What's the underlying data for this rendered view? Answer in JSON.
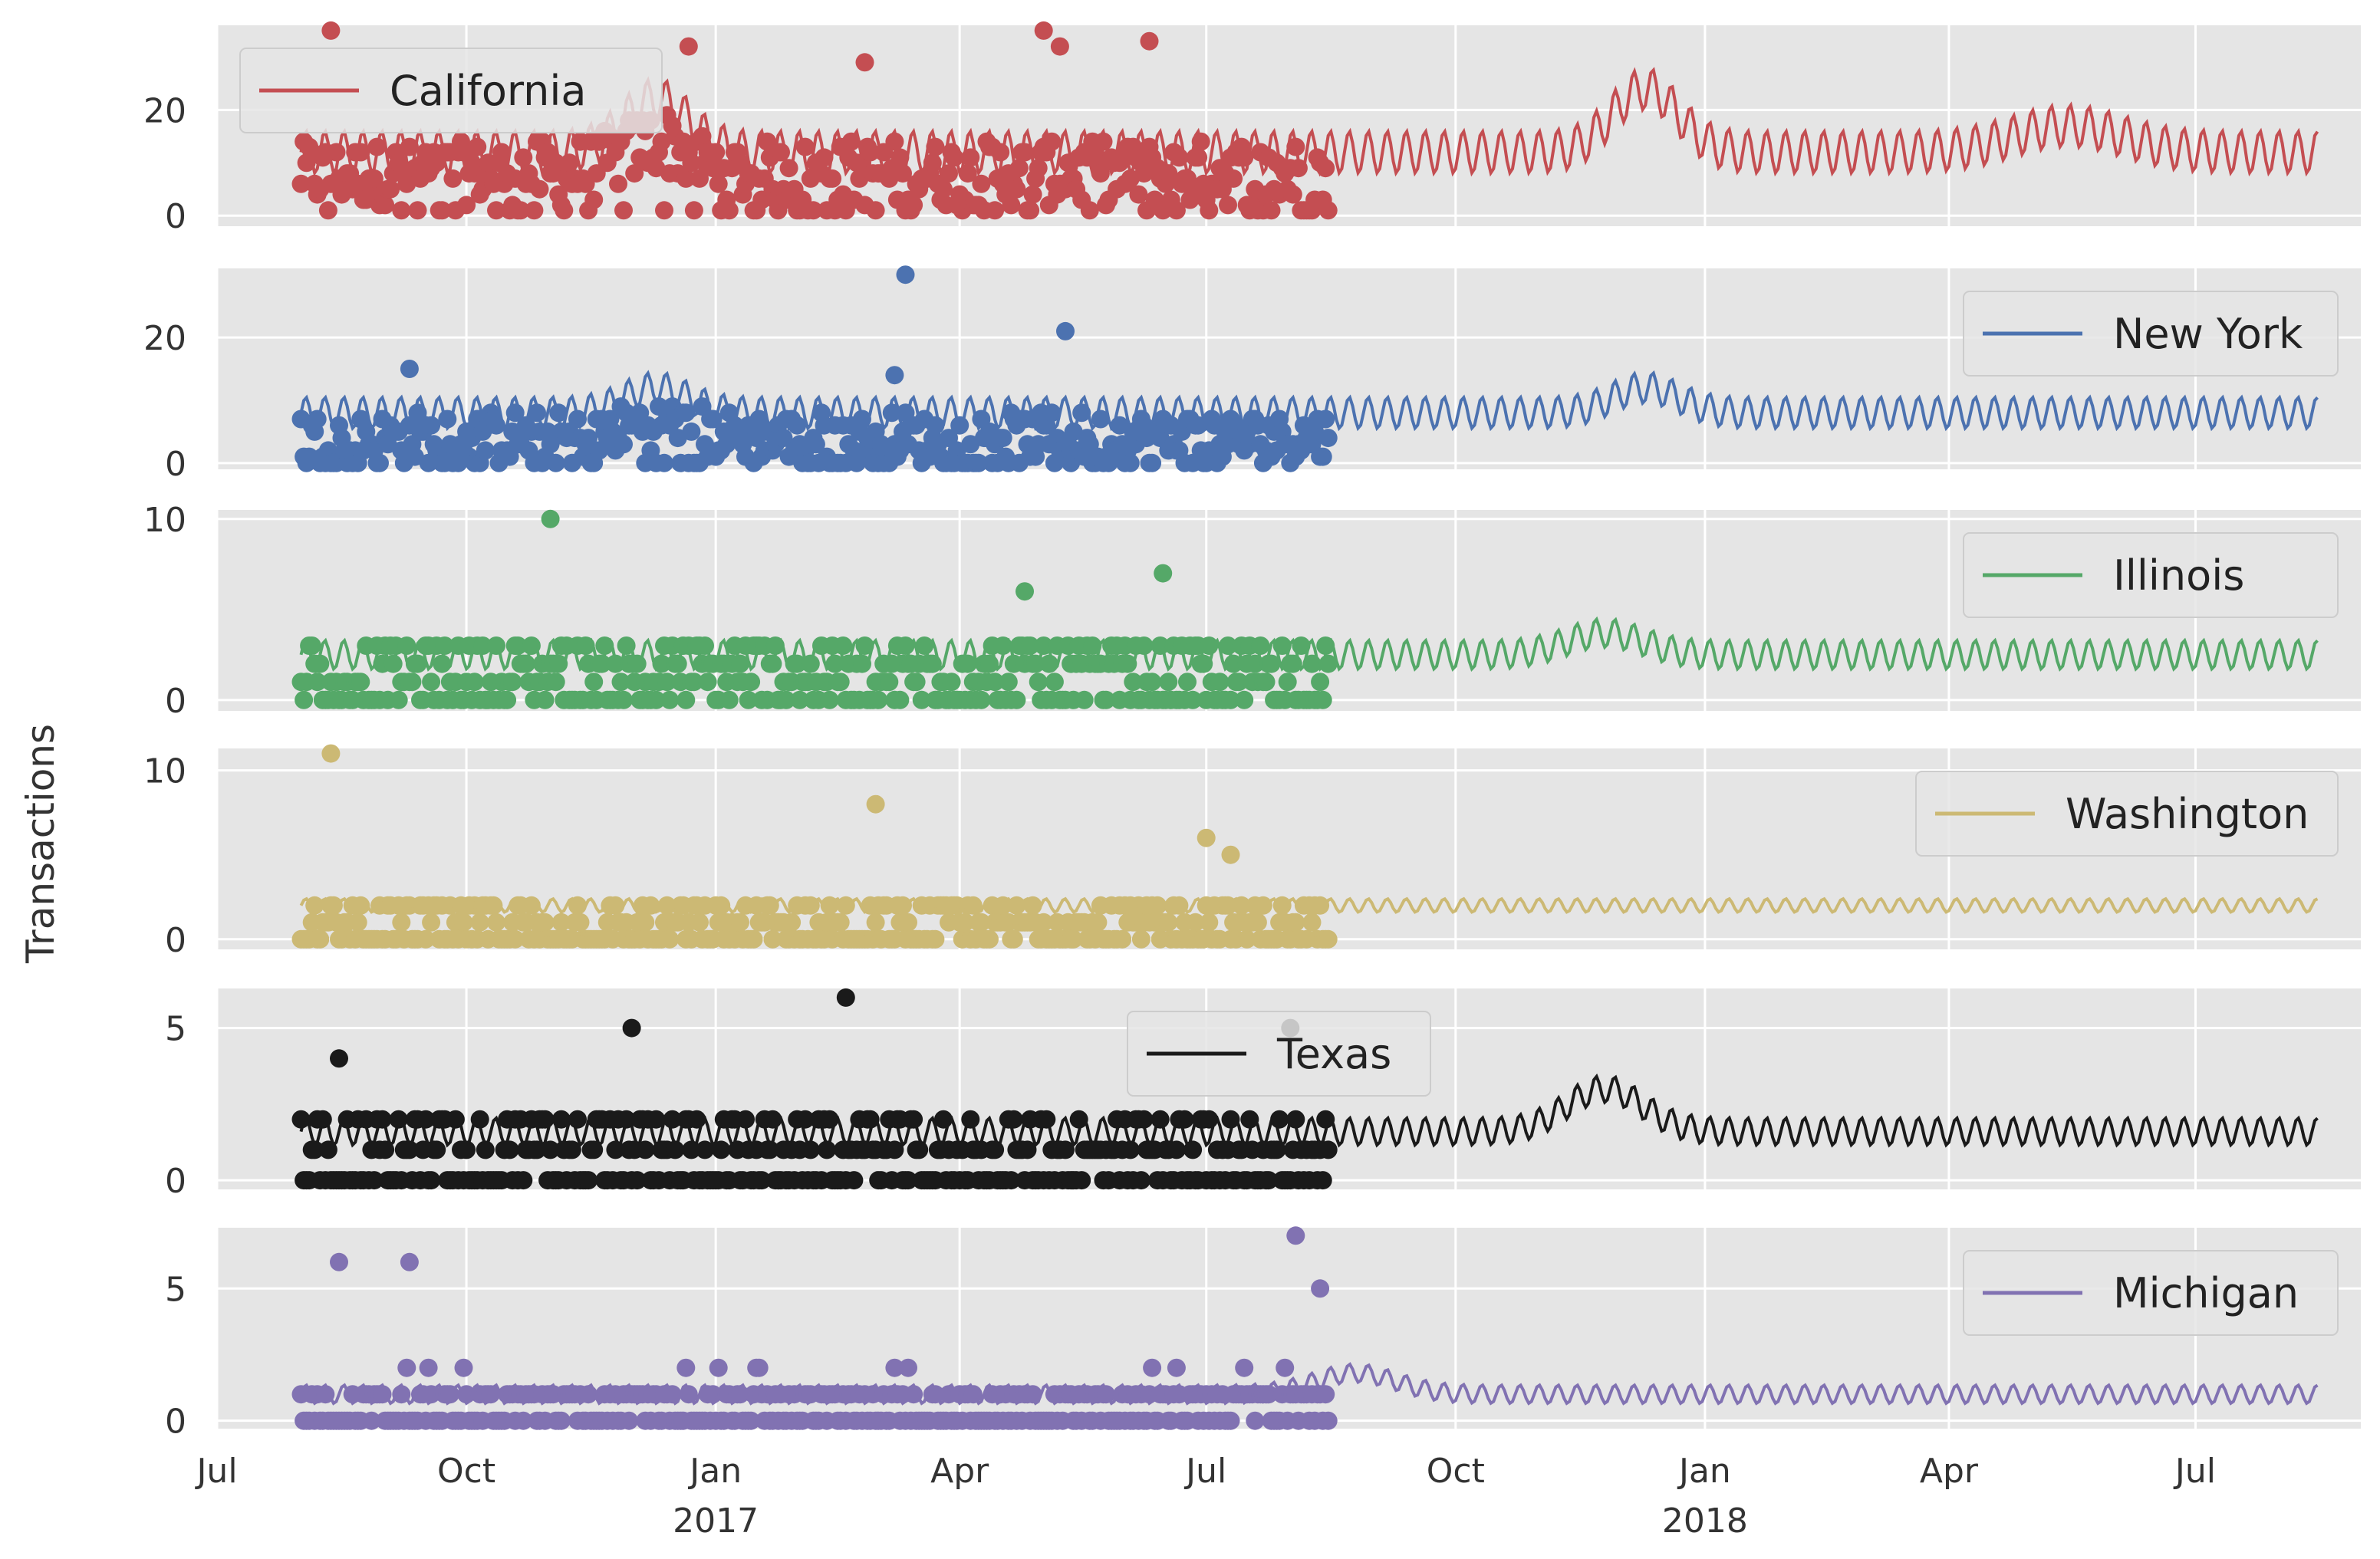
{
  "chart_data": {
    "type": "line",
    "ylabel": "Transactions",
    "xlabel": "",
    "xlim": [
      "2016-07-01",
      "2018-08-31"
    ],
    "grid": true,
    "background_color": "#e5e5e5",
    "marker_style": "scatter points = observed daily counts; line = fitted / forecast",
    "x_ticks": [
      {
        "date": "2016-07-01",
        "label": "Jul",
        "year": ""
      },
      {
        "date": "2016-10-01",
        "label": "Oct",
        "year": ""
      },
      {
        "date": "2017-01-01",
        "label": "Jan",
        "year": "2017"
      },
      {
        "date": "2017-04-01",
        "label": "Apr",
        "year": ""
      },
      {
        "date": "2017-07-01",
        "label": "Jul",
        "year": ""
      },
      {
        "date": "2017-10-01",
        "label": "Oct",
        "year": ""
      },
      {
        "date": "2018-01-01",
        "label": "Jan",
        "year": "2018"
      },
      {
        "date": "2018-04-01",
        "label": "Apr",
        "year": ""
      },
      {
        "date": "2018-07-01",
        "label": "Jul",
        "year": ""
      }
    ],
    "panels": [
      {
        "name": "California",
        "color": "#c44e52",
        "legend_position": "upper-left",
        "ylim": [
          -2,
          36
        ],
        "yticks": [
          0,
          20
        ],
        "observed_range": [
          "2016-08-01",
          "2017-08-15"
        ],
        "forecast_range": [
          "2016-08-01",
          "2018-08-15"
        ],
        "observed_base": 8,
        "observed_spread": 6,
        "forecast_level": 12,
        "weekly_amplitude": 4,
        "peaks": [
          {
            "date": "2016-12-10",
            "height": 10,
            "width_days": 12
          },
          {
            "date": "2017-12-10",
            "height": 12,
            "width_days": 12
          },
          {
            "date": "2018-05-15",
            "height": 5,
            "width_days": 20
          }
        ],
        "outliers": [
          {
            "date": "2016-08-12",
            "value": 35
          },
          {
            "date": "2016-12-22",
            "value": 32
          },
          {
            "date": "2017-05-02",
            "value": 35
          },
          {
            "date": "2017-05-08",
            "value": 32
          },
          {
            "date": "2017-06-10",
            "value": 33
          },
          {
            "date": "2017-02-25",
            "value": 29
          }
        ]
      },
      {
        "name": "New York",
        "color": "#4c72b0",
        "legend_position": "upper-right",
        "ylim": [
          -1,
          31
        ],
        "yticks": [
          0,
          20
        ],
        "observed_range": [
          "2016-08-01",
          "2017-08-15"
        ],
        "forecast_range": [
          "2016-08-01",
          "2018-08-15"
        ],
        "observed_base": 4,
        "observed_spread": 4,
        "forecast_level": 8,
        "weekly_amplitude": 2.5,
        "peaks": [
          {
            "date": "2016-12-10",
            "height": 4,
            "width_days": 12
          },
          {
            "date": "2017-12-10",
            "height": 4,
            "width_days": 12
          }
        ],
        "outliers": [
          {
            "date": "2017-03-12",
            "value": 30
          },
          {
            "date": "2017-05-10",
            "value": 21
          },
          {
            "date": "2016-09-10",
            "value": 15
          },
          {
            "date": "2017-03-08",
            "value": 14
          }
        ]
      },
      {
        "name": "Illinois",
        "color": "#55a868",
        "legend_position": "upper-right",
        "ylim": [
          -0.6,
          10.5
        ],
        "yticks": [
          0,
          10
        ],
        "observed_range": [
          "2016-08-01",
          "2017-08-15"
        ],
        "forecast_range": [
          "2016-08-01",
          "2018-08-15"
        ],
        "observed_base": 1.5,
        "observed_spread": 1.8,
        "forecast_level": 2.5,
        "weekly_amplitude": 0.8,
        "peaks": [
          {
            "date": "2017-11-25",
            "height": 1.2,
            "width_days": 14
          }
        ],
        "outliers": [
          {
            "date": "2016-11-01",
            "value": 10
          },
          {
            "date": "2017-06-15",
            "value": 7
          },
          {
            "date": "2017-04-25",
            "value": 6
          }
        ]
      },
      {
        "name": "Washington",
        "color": "#ccb974",
        "legend_position": "upper-right",
        "ylim": [
          -0.6,
          11.3
        ],
        "yticks": [
          0,
          10
        ],
        "observed_range": [
          "2016-08-01",
          "2017-08-15"
        ],
        "forecast_range": [
          "2016-08-01",
          "2018-08-15"
        ],
        "observed_base": 0.8,
        "observed_spread": 1.4,
        "forecast_level": 2.0,
        "weekly_amplitude": 0.4,
        "peaks": [],
        "outliers": [
          {
            "date": "2016-08-12",
            "value": 11
          },
          {
            "date": "2017-03-01",
            "value": 8
          },
          {
            "date": "2017-07-01",
            "value": 6
          },
          {
            "date": "2017-07-10",
            "value": 5
          }
        ]
      },
      {
        "name": "Texas",
        "color": "#1a1a1a",
        "legend_position": "upper-center",
        "ylim": [
          -0.3,
          6.3
        ],
        "yticks": [
          0,
          5
        ],
        "observed_range": [
          "2016-08-01",
          "2017-08-15"
        ],
        "forecast_range": [
          "2016-08-01",
          "2018-08-15"
        ],
        "observed_base": 0.8,
        "observed_spread": 1.2,
        "forecast_level": 1.6,
        "weekly_amplitude": 0.45,
        "peaks": [
          {
            "date": "2017-11-25",
            "height": 1.4,
            "width_days": 14
          }
        ],
        "outliers": [
          {
            "date": "2017-02-18",
            "value": 6
          },
          {
            "date": "2016-12-01",
            "value": 5
          },
          {
            "date": "2017-08-01",
            "value": 5
          },
          {
            "date": "2016-08-15",
            "value": 4
          }
        ]
      },
      {
        "name": "Michigan",
        "color": "#8172b2",
        "legend_position": "upper-right",
        "ylim": [
          -0.3,
          7.3
        ],
        "yticks": [
          0,
          5
        ],
        "observed_range": [
          "2016-08-01",
          "2017-08-15"
        ],
        "forecast_range": [
          "2016-08-01",
          "2018-08-15"
        ],
        "observed_base": 0.6,
        "observed_spread": 1.0,
        "forecast_level": 1.0,
        "weekly_amplitude": 0.35,
        "peaks": [
          {
            "date": "2017-08-25",
            "height": 0.8,
            "width_days": 15
          }
        ],
        "outliers": [
          {
            "date": "2017-08-03",
            "value": 7
          },
          {
            "date": "2016-08-15",
            "value": 6
          },
          {
            "date": "2016-09-10",
            "value": 6
          },
          {
            "date": "2017-08-12",
            "value": 5
          }
        ]
      }
    ]
  }
}
